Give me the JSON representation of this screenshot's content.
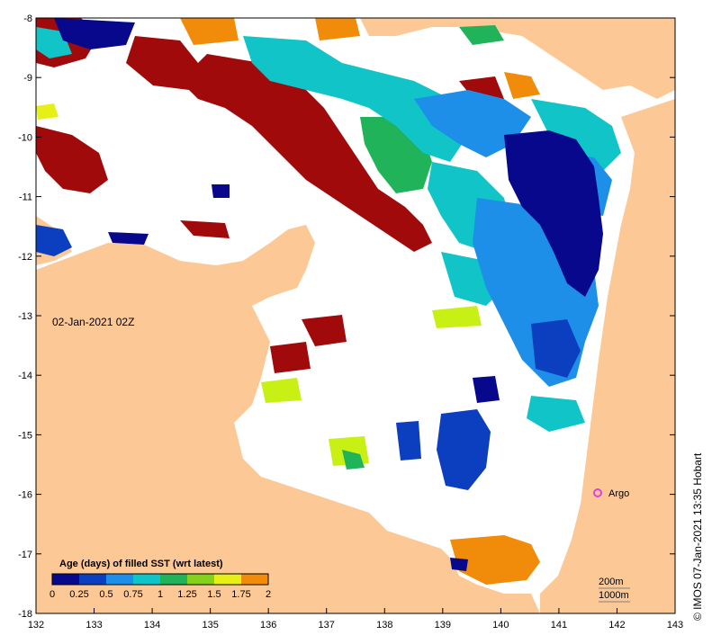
{
  "map": {
    "date_label": "02-Jan-2021 02Z",
    "credit": "© IMOS 07-Jan-2021 13:35 Hobart",
    "x_ticks": [
      "132",
      "133",
      "134",
      "135",
      "136",
      "137",
      "138",
      "139",
      "140",
      "141",
      "142",
      "143"
    ],
    "y_ticks": [
      "-8",
      "-9",
      "-10",
      "-11",
      "-12",
      "-13",
      "-14",
      "-15",
      "-16",
      "-17",
      "-18"
    ],
    "legend": {
      "title": "Age (days) of filled SST (wrt latest)",
      "ticks": [
        "0",
        "0.25",
        "0.5",
        "0.75",
        "1",
        "1.25",
        "1.5",
        "1.75",
        "2"
      ],
      "colors": [
        "#08088c",
        "#0b3fbf",
        "#1e8fe8",
        "#10c4c8",
        "#21b35a",
        "#86d21a",
        "#e6f014",
        "#f08c0a",
        "#a00a0a"
      ]
    },
    "argo": {
      "label": "Argo",
      "lon": 141.7,
      "lat": -16.0,
      "color": "#e040e0"
    },
    "depth_contours": {
      "label_a": "200m",
      "label_b": "1000m"
    },
    "colors": {
      "land": "#fbc896",
      "ocean_no_data": "#ffffff",
      "age_0": "#08088c",
      "age_025": "#0b3fbf",
      "age_05": "#1e8fe8",
      "age_075": "#10c4c8",
      "age_1": "#21b35a",
      "age_125": "#86d21a",
      "age_15": "#e6f014",
      "age_175": "#f08c0a",
      "age_2": "#a00a0a"
    }
  }
}
